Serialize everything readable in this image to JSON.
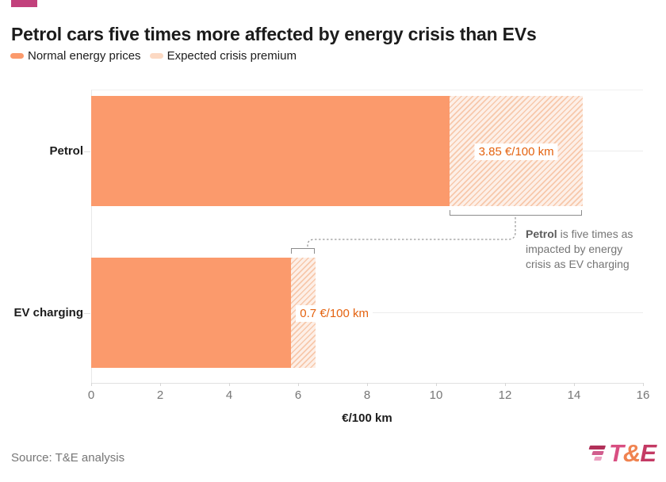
{
  "accent_color": "#c2417c",
  "title": "Petrol cars five times more affected by energy crisis than EVs",
  "legend": {
    "items": [
      {
        "label": "Normal energy prices",
        "color": "#fb9a6c"
      },
      {
        "label": "Expected crisis premium",
        "color": "#fcd9c3"
      }
    ]
  },
  "chart_data": {
    "type": "bar",
    "orientation": "horizontal",
    "stacked": true,
    "categories": [
      "Petrol",
      "EV charging"
    ],
    "series": [
      {
        "name": "Normal energy prices",
        "values": [
          10.4,
          5.8
        ]
      },
      {
        "name": "Expected crisis premium",
        "values": [
          3.85,
          0.7
        ]
      }
    ],
    "totals": [
      14.25,
      6.5
    ],
    "premium_labels": [
      "3.85 €/100 km",
      "0.7 €/100 km"
    ],
    "xlabel": "€/100 km",
    "xlim": [
      0,
      16
    ],
    "xticks": [
      0,
      2,
      4,
      6,
      8,
      10,
      12,
      14,
      16
    ],
    "grid": "category-row-lines",
    "legend_position": "top-left",
    "colors": {
      "normal": "#fb9a6c",
      "premium_bg": "#fdefe7",
      "premium_stripe": "#f7c8ab",
      "value_label": "#e4620f"
    }
  },
  "annotation": {
    "bold": "Petrol",
    "rest": " is five times as impacted by energy crisis as EV charging"
  },
  "footer": {
    "source": "Source: T&E analysis",
    "logo": {
      "t": "T",
      "amp": "&",
      "e": "E",
      "t_color": "#d94f82",
      "amp_color": "#f08350",
      "e_color": "#c43a64",
      "stripe_colors": [
        "#b13059",
        "#d15d8d",
        "#ec9fc0"
      ]
    }
  }
}
